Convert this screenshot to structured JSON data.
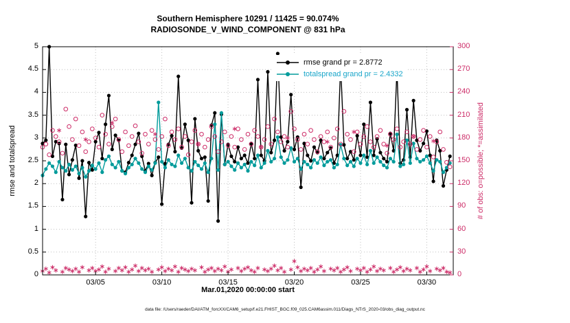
{
  "caption": "data file: /Users/raeder/DAI/ATM_forcXX/CAM6_setup/f.e21.FHIST_BGC.f09_025.CAM6assim.011/Diags_NTrS_2020-03/obs_diag_output.nc",
  "chart_data": {
    "type": "line",
    "title": "Southern Hemisphere 10291 / 11425 = 90.074%",
    "subtitle": "RADIOSONDE_V_WIND_COMPONENT @ 831 hPa",
    "xlabel": "Mar.01,2020 00:00:00 start",
    "grid": true,
    "legend_position": "upper-center",
    "x_range": [
      0,
      124
    ],
    "x_ticks": {
      "positions": [
        16,
        36,
        56,
        76,
        96,
        116
      ],
      "labels": [
        "03/05",
        "03/10",
        "03/15",
        "03/20",
        "03/25",
        "03/30"
      ]
    },
    "left_axis": {
      "label": "rmse and totalspread",
      "range": [
        0,
        5
      ],
      "tick_step": 0.5,
      "tick_labels": [
        "0",
        "0.5",
        "1",
        "1.5",
        "2",
        "2.5",
        "3",
        "3.5",
        "4",
        "4.5",
        "5"
      ],
      "color": "#000000"
    },
    "right_axis": {
      "label": "# of obs: o=possible; *=assimilated",
      "range": [
        0,
        300
      ],
      "tick_step": 30,
      "tick_labels": [
        "0",
        "30",
        "60",
        "90",
        "120",
        "150",
        "180",
        "210",
        "240",
        "270",
        "300"
      ],
      "color": "#cc2a66"
    },
    "series": [
      {
        "name": "rmse",
        "legend": "rmse grand pr = 2.8772",
        "color": "#000000",
        "legend_text_color": "#000000",
        "axis": "left",
        "marker": "dot",
        "line": true,
        "values": [
          2.88,
          2.95,
          5.0,
          2.6,
          2.92,
          2.88,
          1.65,
          2.86,
          2.2,
          2.52,
          2.84,
          2.12,
          2.5,
          1.28,
          2.46,
          2.3,
          2.92,
          3.12,
          2.55,
          3.3,
          3.93,
          2.75,
          3.06,
          2.95,
          2.28,
          2.25,
          2.46,
          2.62,
          2.86,
          3.1,
          2.6,
          2.28,
          2.44,
          2.18,
          2.46,
          2.58,
          1.55,
          2.44,
          2.86,
          3.05,
          2.7,
          4.35,
          2.78,
          3.3,
          2.95,
          1.58,
          3.42,
          2.72,
          2.55,
          2.58,
          1.62,
          3.28,
          3.55,
          1.18,
          3.52,
          2.42,
          2.86,
          2.6,
          2.48,
          2.8,
          2.55,
          2.62,
          2.45,
          2.88,
          2.55,
          4.28,
          2.62,
          2.5,
          4.45,
          2.68,
          2.95,
          4.85,
          3.02,
          2.72,
          2.92,
          3.95,
          2.75,
          3.02,
          1.92,
          2.88,
          2.62,
          2.5,
          2.8,
          2.68,
          2.95,
          2.55,
          2.68,
          2.78,
          2.45,
          2.62,
          4.6,
          2.85,
          2.55,
          2.7,
          2.52,
          3.05,
          2.62,
          3.3,
          2.58,
          3.78,
          2.62,
          2.98,
          2.68,
          2.55,
          2.48,
          3.1,
          2.72,
          4.5,
          2.45,
          2.52,
          3.62,
          2.58,
          3.82,
          2.95,
          2.72,
          2.88,
          3.15,
          2.62,
          2.05,
          2.95,
          2.72,
          1.95,
          2.3,
          2.6
        ]
      },
      {
        "name": "totalspread",
        "legend": "totalspread grand pr = 2.4332",
        "color": "#009b9b",
        "legend_text_color": "#18a5c9",
        "axis": "left",
        "marker": "dot",
        "line": true,
        "values": [
          2.18,
          2.32,
          2.45,
          2.38,
          2.25,
          2.48,
          2.35,
          2.28,
          2.42,
          2.3,
          2.38,
          2.22,
          2.35,
          2.15,
          2.28,
          2.4,
          2.32,
          2.45,
          2.25,
          2.52,
          2.6,
          2.42,
          2.35,
          2.48,
          2.28,
          2.22,
          2.35,
          2.42,
          2.55,
          2.45,
          2.32,
          2.25,
          2.38,
          2.3,
          2.45,
          3.78,
          2.48,
          2.35,
          2.52,
          2.42,
          2.38,
          2.62,
          2.45,
          2.55,
          2.35,
          2.28,
          2.48,
          2.4,
          2.32,
          2.45,
          2.25,
          2.55,
          3.3,
          2.3,
          3.55,
          2.42,
          2.48,
          2.38,
          2.3,
          2.45,
          2.35,
          2.42,
          2.28,
          2.48,
          2.4,
          2.62,
          2.35,
          2.45,
          2.72,
          2.48,
          2.55,
          3.02,
          2.58,
          2.45,
          2.52,
          2.78,
          2.48,
          2.55,
          2.32,
          2.48,
          2.42,
          2.35,
          2.52,
          2.45,
          2.58,
          2.4,
          2.48,
          2.52,
          2.35,
          2.42,
          2.85,
          2.55,
          2.4,
          2.48,
          2.38,
          2.55,
          2.45,
          2.62,
          2.42,
          2.72,
          2.45,
          2.58,
          2.48,
          2.4,
          2.35,
          2.55,
          2.48,
          3.08,
          2.38,
          2.42,
          2.95,
          2.45,
          2.88,
          2.55,
          2.48,
          2.52,
          2.6,
          2.45,
          2.28,
          2.52,
          2.48,
          2.25,
          2.35,
          2.45
        ]
      },
      {
        "name": "possible_obs",
        "legend": null,
        "color": "#cc2a66",
        "axis": "right",
        "marker": "open-circle",
        "line": false,
        "values": [
          168,
          172,
          158,
          190,
          182,
          175,
          160,
          218,
          195,
          178,
          205,
          170,
          188,
          162,
          175,
          192,
          180,
          168,
          210,
          185,
          172,
          195,
          205,
          178,
          162,
          188,
          170,
          182,
          196,
          175,
          160,
          185,
          172,
          190,
          178,
          165,
          182,
          205,
          170,
          188,
          178,
          192,
          168,
          182,
          158,
          175,
          190,
          172,
          185,
          168,
          178,
          195,
          182,
          162,
          175,
          188,
          170,
          182,
          168,
          192,
          178,
          165,
          185,
          172,
          190,
          182,
          168,
          178,
          195,
          172,
          205,
          188,
          175,
          182,
          168,
          215,
          192,
          178,
          165,
          185,
          172,
          190,
          178,
          162,
          182,
          175,
          188,
          168,
          180,
          192,
          172,
          215,
          185,
          178,
          162,
          188,
          172,
          182,
          195,
          175,
          168,
          182,
          190,
          172,
          160,
          185,
          178,
          192,
          168,
          175,
          188,
          172,
          182,
          165,
          178,
          190,
          168,
          182,
          155,
          175,
          188,
          165,
          148,
          142
        ]
      },
      {
        "name": "assimilated_obs",
        "legend": null,
        "color": "#cc2a66",
        "axis": "right",
        "marker": "asterisk",
        "line": false,
        "values": [
          5,
          8,
          3,
          10,
          6,
          190,
          4,
          9,
          7,
          5,
          8,
          4,
          10,
          178,
          6,
          9,
          5,
          7,
          11,
          4,
          8,
          200,
          5,
          9,
          6,
          10,
          4,
          7,
          12,
          5,
          9,
          6,
          8,
          4,
          185,
          7,
          10,
          5,
          8,
          6,
          11,
          4,
          9,
          7,
          5,
          8,
          6,
          172,
          10,
          4,
          7,
          9,
          5,
          8,
          6,
          11,
          4,
          7,
          192,
          9,
          5,
          8,
          10,
          6,
          4,
          9,
          168,
          7,
          5,
          8,
          12,
          6,
          9,
          4,
          180,
          7,
          18,
          10,
          5,
          8,
          6,
          9,
          4,
          7,
          11,
          5,
          175,
          8,
          6,
          9,
          4,
          7,
          10,
          5,
          188,
          8,
          6,
          9,
          4,
          7,
          11,
          5,
          8,
          6,
          170,
          9,
          4,
          7,
          10,
          5,
          8,
          6,
          182,
          9,
          4,
          7,
          11,
          5,
          176,
          8,
          6,
          9,
          4,
          3
        ]
      }
    ]
  }
}
